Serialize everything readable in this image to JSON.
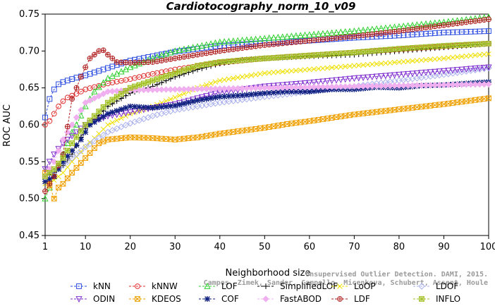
{
  "chart_data": {
    "type": "line",
    "title": "Cardiotocography_norm_10_v09",
    "xlabel": "Neighborhood size",
    "ylabel": "ROC AUC",
    "xlim": [
      1,
      100
    ],
    "ylim": [
      0.45,
      0.75
    ],
    "xticks": [
      1,
      10,
      20,
      30,
      40,
      50,
      60,
      70,
      80,
      90,
      100
    ],
    "yticks": [
      0.45,
      0.5,
      0.55,
      0.6,
      0.65,
      0.7,
      0.75
    ],
    "ytick_labels": [
      "0.45",
      "0.50",
      "0.55",
      "0.60",
      "0.65",
      "0.70",
      "0.75"
    ],
    "grid": false,
    "legend_placement": "bottom",
    "series": [
      {
        "name": "kNN",
        "color": "#2b4be0",
        "marker": "square",
        "points": [
          [
            1,
            0.61
          ],
          [
            2,
            0.635
          ],
          [
            3,
            0.648
          ],
          [
            4,
            0.655
          ],
          [
            5,
            0.658
          ],
          [
            6,
            0.66
          ],
          [
            7,
            0.662
          ],
          [
            8,
            0.664
          ],
          [
            10,
            0.667
          ],
          [
            12,
            0.671
          ],
          [
            15,
            0.677
          ],
          [
            20,
            0.687
          ],
          [
            25,
            0.693
          ],
          [
            30,
            0.699
          ],
          [
            40,
            0.707
          ],
          [
            50,
            0.711
          ],
          [
            60,
            0.714
          ],
          [
            70,
            0.718
          ],
          [
            80,
            0.721
          ],
          [
            90,
            0.725
          ],
          [
            100,
            0.727
          ]
        ]
      },
      {
        "name": "kNNW",
        "color": "#e03030",
        "marker": "circle",
        "points": [
          [
            1,
            0.6
          ],
          [
            2,
            0.605
          ],
          [
            3,
            0.615
          ],
          [
            4,
            0.625
          ],
          [
            5,
            0.632
          ],
          [
            6,
            0.637
          ],
          [
            8,
            0.642
          ],
          [
            10,
            0.648
          ],
          [
            15,
            0.656
          ],
          [
            20,
            0.662
          ],
          [
            25,
            0.669
          ],
          [
            30,
            0.675
          ],
          [
            40,
            0.684
          ],
          [
            50,
            0.69
          ],
          [
            60,
            0.694
          ],
          [
            70,
            0.698
          ],
          [
            80,
            0.702
          ],
          [
            90,
            0.706
          ],
          [
            100,
            0.71
          ]
        ]
      },
      {
        "name": "LOF",
        "color": "#30d030",
        "marker": "triangle",
        "points": [
          [
            1,
            0.5
          ],
          [
            2,
            0.515
          ],
          [
            3,
            0.53
          ],
          [
            4,
            0.545
          ],
          [
            5,
            0.56
          ],
          [
            6,
            0.575
          ],
          [
            7,
            0.59
          ],
          [
            8,
            0.6
          ],
          [
            10,
            0.625
          ],
          [
            12,
            0.645
          ],
          [
            15,
            0.663
          ],
          [
            20,
            0.678
          ],
          [
            25,
            0.69
          ],
          [
            30,
            0.7
          ],
          [
            35,
            0.706
          ],
          [
            40,
            0.712
          ],
          [
            50,
            0.717
          ],
          [
            60,
            0.722
          ],
          [
            70,
            0.727
          ],
          [
            80,
            0.733
          ],
          [
            90,
            0.739
          ],
          [
            100,
            0.746
          ]
        ]
      },
      {
        "name": "SimplifiedLOF",
        "color": "#000000",
        "marker": "plus",
        "points": [
          [
            1,
            0.53
          ],
          [
            3,
            0.535
          ],
          [
            5,
            0.545
          ],
          [
            7,
            0.56
          ],
          [
            10,
            0.595
          ],
          [
            15,
            0.625
          ],
          [
            20,
            0.643
          ],
          [
            25,
            0.652
          ],
          [
            30,
            0.665
          ],
          [
            35,
            0.675
          ],
          [
            40,
            0.683
          ],
          [
            45,
            0.688
          ],
          [
            50,
            0.69
          ],
          [
            60,
            0.693
          ],
          [
            70,
            0.695
          ],
          [
            80,
            0.7
          ],
          [
            90,
            0.705
          ],
          [
            100,
            0.71
          ]
        ]
      },
      {
        "name": "LoOP",
        "color": "#f0e000",
        "marker": "x",
        "points": [
          [
            1,
            0.52
          ],
          [
            3,
            0.525
          ],
          [
            5,
            0.535
          ],
          [
            7,
            0.55
          ],
          [
            10,
            0.57
          ],
          [
            15,
            0.6
          ],
          [
            20,
            0.615
          ],
          [
            25,
            0.625
          ],
          [
            30,
            0.637
          ],
          [
            35,
            0.65
          ],
          [
            40,
            0.66
          ],
          [
            50,
            0.67
          ],
          [
            60,
            0.675
          ],
          [
            70,
            0.68
          ],
          [
            80,
            0.685
          ],
          [
            90,
            0.69
          ],
          [
            100,
            0.696
          ]
        ]
      },
      {
        "name": "LDOF",
        "color": "#aab0ee",
        "marker": "diamond",
        "points": [
          [
            1,
            0.53
          ],
          [
            5,
            0.545
          ],
          [
            10,
            0.57
          ],
          [
            15,
            0.59
          ],
          [
            20,
            0.602
          ],
          [
            25,
            0.612
          ],
          [
            30,
            0.62
          ],
          [
            40,
            0.63
          ],
          [
            50,
            0.638
          ],
          [
            60,
            0.645
          ],
          [
            70,
            0.652
          ],
          [
            80,
            0.66
          ],
          [
            90,
            0.668
          ],
          [
            100,
            0.677
          ]
        ]
      },
      {
        "name": "ODIN",
        "color": "#8030d0",
        "marker": "triangle-down",
        "points": [
          [
            1,
            0.54
          ],
          [
            2,
            0.55
          ],
          [
            3,
            0.56
          ],
          [
            5,
            0.575
          ],
          [
            7,
            0.585
          ],
          [
            10,
            0.6
          ],
          [
            15,
            0.612
          ],
          [
            20,
            0.617
          ],
          [
            25,
            0.623
          ],
          [
            30,
            0.628
          ],
          [
            35,
            0.636
          ],
          [
            40,
            0.644
          ],
          [
            50,
            0.652
          ],
          [
            60,
            0.657
          ],
          [
            70,
            0.663
          ],
          [
            80,
            0.668
          ],
          [
            90,
            0.673
          ],
          [
            100,
            0.678
          ]
        ]
      },
      {
        "name": "KDEOS",
        "color": "#f0a000",
        "marker": "square-x",
        "points": [
          [
            1,
            0.535
          ],
          [
            3,
            0.5
          ],
          [
            4,
            0.515
          ],
          [
            5,
            0.52
          ],
          [
            7,
            0.535
          ],
          [
            10,
            0.555
          ],
          [
            13,
            0.575
          ],
          [
            15,
            0.58
          ],
          [
            20,
            0.583
          ],
          [
            25,
            0.582
          ],
          [
            30,
            0.58
          ],
          [
            35,
            0.583
          ],
          [
            40,
            0.588
          ],
          [
            45,
            0.592
          ],
          [
            50,
            0.596
          ],
          [
            55,
            0.601
          ],
          [
            60,
            0.605
          ],
          [
            70,
            0.614
          ],
          [
            80,
            0.621
          ],
          [
            90,
            0.628
          ],
          [
            100,
            0.636
          ]
        ]
      },
      {
        "name": "COF",
        "color": "#102080",
        "marker": "star",
        "points": [
          [
            1,
            0.523
          ],
          [
            3,
            0.53
          ],
          [
            5,
            0.55
          ],
          [
            7,
            0.565
          ],
          [
            9,
            0.58
          ],
          [
            11,
            0.6
          ],
          [
            15,
            0.615
          ],
          [
            20,
            0.625
          ],
          [
            25,
            0.623
          ],
          [
            30,
            0.626
          ],
          [
            35,
            0.633
          ],
          [
            40,
            0.638
          ],
          [
            45,
            0.64
          ],
          [
            50,
            0.643
          ],
          [
            55,
            0.645
          ],
          [
            60,
            0.645
          ],
          [
            65,
            0.648
          ],
          [
            70,
            0.648
          ],
          [
            75,
            0.651
          ],
          [
            80,
            0.65
          ],
          [
            85,
            0.653
          ],
          [
            90,
            0.654
          ],
          [
            95,
            0.656
          ],
          [
            100,
            0.658
          ]
        ]
      },
      {
        "name": "FastABOD",
        "color": "#f0b0f0",
        "marker": "diamond-filled",
        "points": [
          [
            1,
            0.53
          ],
          [
            3,
            0.55
          ],
          [
            5,
            0.58
          ],
          [
            8,
            0.61
          ],
          [
            10,
            0.63
          ],
          [
            15,
            0.645
          ],
          [
            20,
            0.647
          ],
          [
            30,
            0.648
          ],
          [
            40,
            0.649
          ],
          [
            50,
            0.65
          ],
          [
            60,
            0.651
          ],
          [
            70,
            0.652
          ],
          [
            80,
            0.653
          ],
          [
            90,
            0.654
          ],
          [
            100,
            0.655
          ]
        ]
      },
      {
        "name": "LDF",
        "color": "#b02020",
        "marker": "circle-plus",
        "points": [
          [
            1,
            0.51
          ],
          [
            3,
            0.53
          ],
          [
            5,
            0.56
          ],
          [
            7,
            0.635
          ],
          [
            9,
            0.665
          ],
          [
            10,
            0.678
          ],
          [
            11,
            0.69
          ],
          [
            12,
            0.695
          ],
          [
            13,
            0.7
          ],
          [
            14,
            0.701
          ],
          [
            15,
            0.695
          ],
          [
            17,
            0.685
          ],
          [
            20,
            0.684
          ],
          [
            25,
            0.685
          ],
          [
            30,
            0.69
          ],
          [
            40,
            0.7
          ],
          [
            50,
            0.708
          ],
          [
            60,
            0.714
          ],
          [
            70,
            0.72
          ],
          [
            80,
            0.727
          ],
          [
            90,
            0.735
          ],
          [
            100,
            0.743
          ]
        ]
      },
      {
        "name": "INFLO",
        "color": "#a0c020",
        "marker": "square-star",
        "points": [
          [
            1,
            0.53
          ],
          [
            3,
            0.54
          ],
          [
            5,
            0.555
          ],
          [
            7,
            0.575
          ],
          [
            10,
            0.6
          ],
          [
            15,
            0.63
          ],
          [
            20,
            0.65
          ],
          [
            25,
            0.66
          ],
          [
            30,
            0.67
          ],
          [
            35,
            0.68
          ],
          [
            40,
            0.685
          ],
          [
            50,
            0.69
          ],
          [
            60,
            0.694
          ],
          [
            70,
            0.698
          ],
          [
            80,
            0.703
          ],
          [
            90,
            0.707
          ],
          [
            100,
            0.71
          ]
        ]
      }
    ]
  },
  "watermark": {
    "line1": "Unsupervised Outlier Detection. DAMI, 2015.",
    "line2": "Campos, Zimek, Sander, Campello, Micenkova, Schubert, Assent, Houle"
  }
}
